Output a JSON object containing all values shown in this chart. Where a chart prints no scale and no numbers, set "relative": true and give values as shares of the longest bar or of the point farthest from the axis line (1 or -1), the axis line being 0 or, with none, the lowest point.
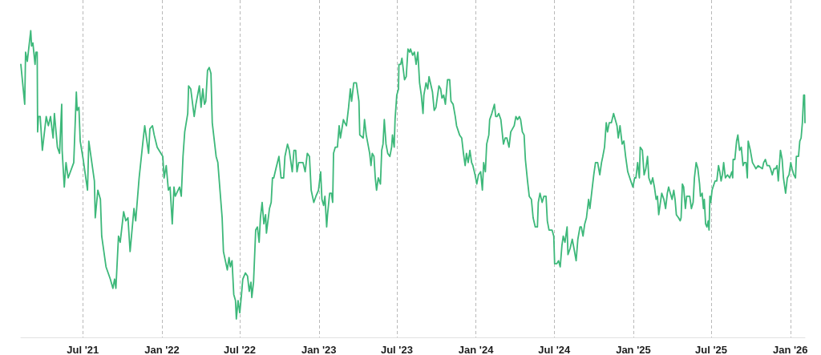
{
  "chart_data": {
    "type": "line",
    "relative": true,
    "color": "#3db87a",
    "grid": "x",
    "xlim": [
      "2021-02-07",
      "2026-02-04"
    ],
    "xticks": [
      {
        "value": "2021-07-01",
        "label": "Jul '21"
      },
      {
        "value": "2022-01-01",
        "label": "Jan '22"
      },
      {
        "value": "2022-07-01",
        "label": "Jul '22"
      },
      {
        "value": "2023-01-01",
        "label": "Jan '23"
      },
      {
        "value": "2023-07-01",
        "label": "Jul '23"
      },
      {
        "value": "2024-01-01",
        "label": "Jan '24"
      },
      {
        "value": "2024-07-01",
        "label": "Jul '24"
      },
      {
        "value": "2025-01-01",
        "label": "Jan '25"
      },
      {
        "value": "2025-07-01",
        "label": "Jul '25"
      },
      {
        "value": "2026-01-01",
        "label": "Jan '26"
      }
    ],
    "x": [
      "2021-02-07",
      "2021-02-16",
      "2021-02-18",
      "2021-02-22",
      "2021-03-02",
      "2021-03-04",
      "2021-03-07",
      "2021-03-12",
      "2021-03-14",
      "2021-03-17",
      "2021-03-18",
      "2021-03-20",
      "2021-03-24",
      "2021-03-29",
      "2021-04-07",
      "2021-04-12",
      "2021-04-17",
      "2021-04-23",
      "2021-04-26",
      "2021-05-03",
      "2021-05-08",
      "2021-05-13",
      "2021-05-14",
      "2021-05-19",
      "2021-05-23",
      "2021-05-28",
      "2021-06-10",
      "2021-06-16",
      "2021-06-18",
      "2021-06-22",
      "2021-06-25",
      "2021-07-02",
      "2021-07-12",
      "2021-07-15",
      "2021-07-24",
      "2021-07-28",
      "2021-07-30",
      "2021-08-05",
      "2021-08-11",
      "2021-08-14",
      "2021-08-24",
      "2021-09-03",
      "2021-09-09",
      "2021-09-13",
      "2021-09-16",
      "2021-09-22",
      "2021-09-26",
      "2021-10-04",
      "2021-10-09",
      "2021-10-14",
      "2021-10-19",
      "2021-10-28",
      "2021-11-01",
      "2021-11-09",
      "2021-11-18",
      "2021-11-22",
      "2021-11-26",
      "2021-12-01",
      "2021-12-04",
      "2021-12-10",
      "2021-12-14",
      "2021-12-21",
      "2022-01-03",
      "2022-01-06",
      "2022-01-11",
      "2022-01-16",
      "2022-01-20",
      "2022-01-25",
      "2022-01-29",
      "2022-02-01",
      "2022-02-11",
      "2022-02-15",
      "2022-02-19",
      "2022-02-23",
      "2022-03-02",
      "2022-03-04",
      "2022-03-09",
      "2022-03-17",
      "2022-03-21",
      "2022-03-29",
      "2022-04-02",
      "2022-04-06",
      "2022-04-10",
      "2022-04-13",
      "2022-04-17",
      "2022-04-21",
      "2022-04-25",
      "2022-04-28",
      "2022-05-07",
      "2022-05-11",
      "2022-05-21",
      "2022-05-24",
      "2022-06-02",
      "2022-06-06",
      "2022-06-09",
      "2022-06-13",
      "2022-06-17",
      "2022-06-21",
      "2022-06-23",
      "2022-06-27",
      "2022-07-01",
      "2022-07-05",
      "2022-07-08",
      "2022-07-14",
      "2022-07-19",
      "2022-07-23",
      "2022-07-27",
      "2022-07-29",
      "2022-08-02",
      "2022-08-07",
      "2022-08-11",
      "2022-08-15",
      "2022-08-18",
      "2022-08-22",
      "2022-08-26",
      "2022-08-30",
      "2022-09-01",
      "2022-09-08",
      "2022-09-12",
      "2022-09-15",
      "2022-09-18",
      "2022-09-23",
      "2022-09-30",
      "2022-10-05",
      "2022-10-11",
      "2022-10-14",
      "2022-10-20",
      "2022-10-24",
      "2022-10-31",
      "2022-11-04",
      "2022-11-08",
      "2022-11-11",
      "2022-11-15",
      "2022-11-25",
      "2022-11-30",
      "2022-12-05",
      "2022-12-10",
      "2022-12-14",
      "2022-12-20",
      "2022-12-25",
      "2022-12-31",
      "2023-01-05",
      "2023-01-08",
      "2023-01-12",
      "2023-01-15",
      "2023-01-19",
      "2023-01-21",
      "2023-01-26",
      "2023-01-30",
      "2023-02-02",
      "2023-02-04",
      "2023-02-08",
      "2023-02-13",
      "2023-02-17",
      "2023-02-20",
      "2023-02-27",
      "2023-03-02",
      "2023-03-06",
      "2023-03-11",
      "2023-03-15",
      "2023-03-18",
      "2023-03-23",
      "2023-03-29",
      "2023-04-04",
      "2023-04-06",
      "2023-04-14",
      "2023-04-17",
      "2023-04-21",
      "2023-04-29",
      "2023-05-02",
      "2023-05-05",
      "2023-05-09",
      "2023-05-12",
      "2023-05-15",
      "2023-05-19",
      "2023-05-24",
      "2023-05-27",
      "2023-05-30",
      "2023-06-02",
      "2023-06-06",
      "2023-06-10",
      "2023-06-15",
      "2023-06-19",
      "2023-06-21",
      "2023-06-25",
      "2023-06-27",
      "2023-07-01",
      "2023-07-05",
      "2023-07-06",
      "2023-07-10",
      "2023-07-13",
      "2023-07-19",
      "2023-07-23",
      "2023-07-27",
      "2023-07-31",
      "2023-08-02",
      "2023-08-07",
      "2023-08-11",
      "2023-08-15",
      "2023-08-19",
      "2023-08-23",
      "2023-08-27",
      "2023-08-31",
      "2023-09-02",
      "2023-09-07",
      "2023-09-11",
      "2023-09-14",
      "2023-09-22",
      "2023-09-26",
      "2023-09-30",
      "2023-10-07",
      "2023-10-11",
      "2023-10-14",
      "2023-10-18",
      "2023-10-22",
      "2023-10-27",
      "2023-11-01",
      "2023-11-04",
      "2023-11-09",
      "2023-11-14",
      "2023-11-17",
      "2023-11-24",
      "2023-11-29",
      "2023-12-03",
      "2023-12-07",
      "2023-12-10",
      "2023-12-14",
      "2023-12-18",
      "2023-12-22",
      "2023-12-25",
      "2023-12-30",
      "2024-01-03",
      "2024-01-07",
      "2024-01-12",
      "2024-01-16",
      "2024-01-19",
      "2024-01-23",
      "2024-01-26",
      "2024-01-31",
      "2024-02-02",
      "2024-02-07",
      "2024-02-13",
      "2024-02-16",
      "2024-02-19",
      "2024-02-23",
      "2024-02-28",
      "2024-03-05",
      "2024-03-09",
      "2024-03-13",
      "2024-03-18",
      "2024-03-22",
      "2024-03-30",
      "2024-04-03",
      "2024-04-07",
      "2024-04-11",
      "2024-04-14",
      "2024-04-18",
      "2024-04-22",
      "2024-04-25",
      "2024-04-30",
      "2024-05-04",
      "2024-05-09",
      "2024-05-13",
      "2024-05-18",
      "2024-05-23",
      "2024-05-25",
      "2024-05-29",
      "2024-06-03",
      "2024-06-07",
      "2024-06-12",
      "2024-06-15",
      "2024-06-19",
      "2024-06-26",
      "2024-06-30",
      "2024-07-02",
      "2024-07-07",
      "2024-07-11",
      "2024-07-15",
      "2024-07-19",
      "2024-07-22",
      "2024-07-26",
      "2024-07-31",
      "2024-08-02",
      "2024-08-07",
      "2024-08-12",
      "2024-08-16",
      "2024-08-21",
      "2024-08-25",
      "2024-08-30",
      "2024-09-02",
      "2024-09-06",
      "2024-09-10",
      "2024-09-14",
      "2024-09-19",
      "2024-09-22",
      "2024-09-26",
      "2024-10-01",
      "2024-10-05",
      "2024-10-10",
      "2024-10-15",
      "2024-10-19",
      "2024-10-22",
      "2024-10-26",
      "2024-10-30",
      "2024-11-02",
      "2024-11-06",
      "2024-11-11",
      "2024-11-16",
      "2024-11-20",
      "2024-11-24",
      "2024-11-27",
      "2024-12-01",
      "2024-12-06",
      "2024-12-10",
      "2024-12-14",
      "2024-12-19",
      "2024-12-26",
      "2024-12-31",
      "2025-01-04",
      "2025-01-07",
      "2025-01-11",
      "2025-01-15",
      "2025-01-17",
      "2025-01-22",
      "2025-01-26",
      "2025-01-30",
      "2025-02-03",
      "2025-02-06",
      "2025-02-11",
      "2025-02-15",
      "2025-02-19",
      "2025-02-23",
      "2025-02-26",
      "2025-03-01",
      "2025-03-04",
      "2025-03-08",
      "2025-03-13",
      "2025-03-17",
      "2025-03-21",
      "2025-03-24",
      "2025-03-28",
      "2025-04-01",
      "2025-04-05",
      "2025-04-08",
      "2025-04-11",
      "2025-04-16",
      "2025-04-20",
      "2025-04-22",
      "2025-04-25",
      "2025-04-28",
      "2025-05-02",
      "2025-05-05",
      "2025-05-12",
      "2025-05-16",
      "2025-05-20",
      "2025-05-23",
      "2025-05-27",
      "2025-05-31",
      "2025-06-04",
      "2025-06-06",
      "2025-06-10",
      "2025-06-13",
      "2025-06-15",
      "2025-06-18",
      "2025-06-21",
      "2025-06-24",
      "2025-06-26",
      "2025-06-28",
      "2025-06-30",
      "2025-07-03",
      "2025-07-10",
      "2025-07-14",
      "2025-07-18",
      "2025-07-21",
      "2025-07-24",
      "2025-07-27",
      "2025-07-30",
      "2025-08-03",
      "2025-08-08",
      "2025-08-13",
      "2025-08-18",
      "2025-08-20",
      "2025-08-21",
      "2025-08-25",
      "2025-08-29",
      "2025-09-01",
      "2025-09-05",
      "2025-09-09",
      "2025-09-13",
      "2025-09-16",
      "2025-09-20",
      "2025-09-23",
      "2025-09-25",
      "2025-09-30",
      "2025-10-05",
      "2025-10-09",
      "2025-10-13",
      "2025-10-18",
      "2025-10-28",
      "2025-10-31",
      "2025-11-04",
      "2025-11-08",
      "2025-11-13",
      "2025-11-16",
      "2025-11-20",
      "2025-11-24",
      "2025-11-28",
      "2025-12-01",
      "2025-12-04",
      "2025-12-06",
      "2025-12-09",
      "2025-12-13",
      "2025-12-16",
      "2025-12-21",
      "2025-12-25",
      "2025-12-29",
      "2026-01-02",
      "2026-01-05",
      "2026-01-09",
      "2026-01-13",
      "2026-01-15",
      "2026-01-20",
      "2026-01-23",
      "2026-01-26",
      "2026-01-29",
      "2026-02-01",
      "2026-02-03",
      "2026-02-04"
    ],
    "values": [
      0.89,
      0.76,
      0.93,
      0.9,
      1.0,
      0.95,
      0.96,
      0.89,
      0.93,
      0.93,
      0.67,
      0.72,
      0.72,
      0.61,
      0.72,
      0.69,
      0.72,
      0.65,
      0.73,
      0.62,
      0.6,
      0.76,
      0.61,
      0.49,
      0.57,
      0.52,
      0.57,
      0.8,
      0.74,
      0.75,
      0.64,
      0.58,
      0.48,
      0.64,
      0.55,
      0.51,
      0.39,
      0.48,
      0.45,
      0.33,
      0.23,
      0.19,
      0.16,
      0.19,
      0.16,
      0.33,
      0.31,
      0.41,
      0.38,
      0.39,
      0.28,
      0.42,
      0.38,
      0.52,
      0.64,
      0.69,
      0.65,
      0.6,
      0.68,
      0.69,
      0.66,
      0.62,
      0.59,
      0.52,
      0.56,
      0.48,
      0.49,
      0.37,
      0.49,
      0.46,
      0.49,
      0.46,
      0.59,
      0.67,
      0.73,
      0.82,
      0.81,
      0.72,
      0.76,
      0.82,
      0.75,
      0.81,
      0.76,
      0.77,
      0.87,
      0.88,
      0.86,
      0.7,
      0.59,
      0.57,
      0.39,
      0.28,
      0.22,
      0.26,
      0.23,
      0.25,
      0.14,
      0.12,
      0.06,
      0.12,
      0.08,
      0.14,
      0.19,
      0.21,
      0.2,
      0.15,
      0.18,
      0.13,
      0.18,
      0.35,
      0.36,
      0.31,
      0.39,
      0.44,
      0.37,
      0.4,
      0.34,
      0.42,
      0.44,
      0.52,
      0.52,
      0.55,
      0.59,
      0.52,
      0.52,
      0.59,
      0.63,
      0.61,
      0.54,
      0.61,
      0.61,
      0.54,
      0.57,
      0.57,
      0.54,
      0.6,
      0.59,
      0.48,
      0.44,
      0.46,
      0.48,
      0.54,
      0.45,
      0.43,
      0.46,
      0.36,
      0.4,
      0.47,
      0.47,
      0.44,
      0.6,
      0.62,
      0.62,
      0.69,
      0.65,
      0.71,
      0.7,
      0.69,
      0.75,
      0.81,
      0.77,
      0.83,
      0.83,
      0.77,
      0.66,
      0.65,
      0.71,
      0.66,
      0.6,
      0.56,
      0.6,
      0.59,
      0.52,
      0.48,
      0.52,
      0.5,
      0.61,
      0.63,
      0.71,
      0.63,
      0.6,
      0.59,
      0.62,
      0.66,
      0.62,
      0.71,
      0.79,
      0.81,
      0.89,
      0.89,
      0.91,
      0.84,
      0.85,
      0.94,
      0.93,
      0.94,
      0.92,
      0.93,
      0.89,
      0.93,
      0.83,
      0.79,
      0.73,
      0.79,
      0.83,
      0.81,
      0.85,
      0.8,
      0.74,
      0.75,
      0.82,
      0.81,
      0.78,
      0.79,
      0.76,
      0.84,
      0.84,
      0.77,
      0.76,
      0.72,
      0.69,
      0.66,
      0.65,
      0.6,
      0.56,
      0.6,
      0.57,
      0.61,
      0.57,
      0.56,
      0.53,
      0.5,
      0.53,
      0.54,
      0.48,
      0.57,
      0.54,
      0.63,
      0.66,
      0.71,
      0.73,
      0.76,
      0.72,
      0.72,
      0.73,
      0.71,
      0.63,
      0.65,
      0.65,
      0.62,
      0.67,
      0.69,
      0.72,
      0.71,
      0.72,
      0.71,
      0.67,
      0.66,
      0.58,
      0.51,
      0.46,
      0.45,
      0.39,
      0.36,
      0.36,
      0.44,
      0.47,
      0.44,
      0.46,
      0.46,
      0.38,
      0.35,
      0.35,
      0.33,
      0.24,
      0.24,
      0.25,
      0.23,
      0.3,
      0.33,
      0.31,
      0.36,
      0.27,
      0.29,
      0.32,
      0.29,
      0.25,
      0.32,
      0.36,
      0.36,
      0.33,
      0.37,
      0.39,
      0.45,
      0.42,
      0.47,
      0.53,
      0.57,
      0.57,
      0.53,
      0.57,
      0.59,
      0.62,
      0.7,
      0.67,
      0.7,
      0.7,
      0.73,
      0.71,
      0.69,
      0.65,
      0.69,
      0.63,
      0.64,
      0.59,
      0.54,
      0.51,
      0.49,
      0.52,
      0.52,
      0.57,
      0.52,
      0.62,
      0.61,
      0.53,
      0.55,
      0.59,
      0.52,
      0.5,
      0.52,
      0.49,
      0.45,
      0.46,
      0.4,
      0.43,
      0.47,
      0.45,
      0.42,
      0.47,
      0.49,
      0.47,
      0.45,
      0.48,
      0.45,
      0.4,
      0.39,
      0.38,
      0.39,
      0.5,
      0.49,
      0.42,
      0.46,
      0.46,
      0.42,
      0.44,
      0.52,
      0.57,
      0.55,
      0.5,
      0.46,
      0.47,
      0.42,
      0.45,
      0.37,
      0.36,
      0.38,
      0.35,
      0.46,
      0.44,
      0.48,
      0.51,
      0.51,
      0.56,
      0.54,
      0.51,
      0.53,
      0.57,
      0.52,
      0.53,
      0.52,
      0.54,
      0.52,
      0.58,
      0.58,
      0.64,
      0.66,
      0.61,
      0.62,
      0.56,
      0.57,
      0.57,
      0.52,
      0.64,
      0.61,
      0.57,
      0.56,
      0.55,
      0.56,
      0.55,
      0.57,
      0.58,
      0.56,
      0.56,
      0.55,
      0.53,
      0.55,
      0.55,
      0.56,
      0.51,
      0.55,
      0.61,
      0.58,
      0.52,
      0.47,
      0.52,
      0.53,
      0.57,
      0.55,
      0.53,
      0.52,
      0.59,
      0.59,
      0.64,
      0.65,
      0.7,
      0.79,
      0.79,
      0.7
    ]
  }
}
